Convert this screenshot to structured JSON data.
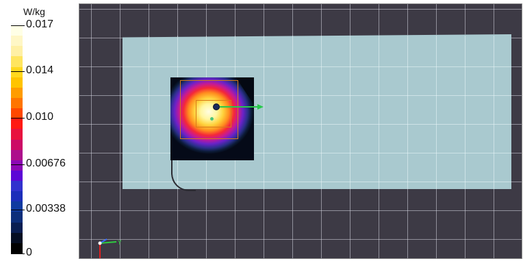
{
  "legend": {
    "unit": "W/kg",
    "ticks": [
      {
        "label": "0.017"
      },
      {
        "label": "0.014"
      },
      {
        "label": "0.010"
      },
      {
        "label": "0.00676"
      },
      {
        "label": "0.00338"
      },
      {
        "label": "0"
      }
    ],
    "colors": [
      "#ffffe6",
      "#fff7c6",
      "#fff0a5",
      "#ffe55f",
      "#ffd81e",
      "#ffc400",
      "#ff9c00",
      "#ff7500",
      "#ff4800",
      "#ff1a12",
      "#e8123e",
      "#cc0b66",
      "#ad0e8c",
      "#8c08b4",
      "#5c06d6",
      "#3232ce",
      "#1c2eba",
      "#0f3aa0",
      "#0c2e7a",
      "#091e52",
      "#040d22",
      "#000000"
    ]
  },
  "viewport": {
    "scene": "SAR 3D view",
    "axis_label_y": "Y"
  }
}
